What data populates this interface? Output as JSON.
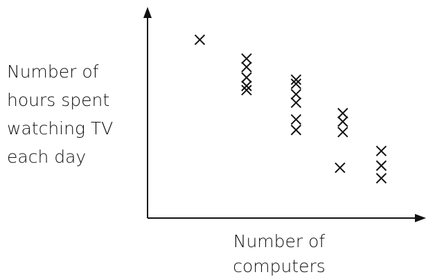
{
  "chart_data": {
    "type": "scatter",
    "x_label": [
      "Number of",
      "computers"
    ],
    "y_label": [
      "Number of",
      "hours spent",
      "watching TV",
      "each day"
    ],
    "x": [
      1.9,
      3.6,
      3.6,
      3.6,
      3.6,
      3.6,
      5.4,
      5.4,
      5.4,
      5.4,
      5.4,
      5.4,
      7.1,
      7.1,
      7.1,
      7.0,
      8.5,
      8.5,
      8.5
    ],
    "values": [
      8.5,
      7.6,
      7.2,
      6.7,
      6.3,
      6.1,
      6.6,
      6.4,
      5.9,
      5.5,
      4.7,
      4.2,
      5.0,
      4.6,
      4.1,
      2.4,
      3.2,
      2.5,
      1.9
    ],
    "color": "#111111",
    "xlim": [
      0,
      10
    ],
    "ylim": [
      0,
      10
    ]
  }
}
